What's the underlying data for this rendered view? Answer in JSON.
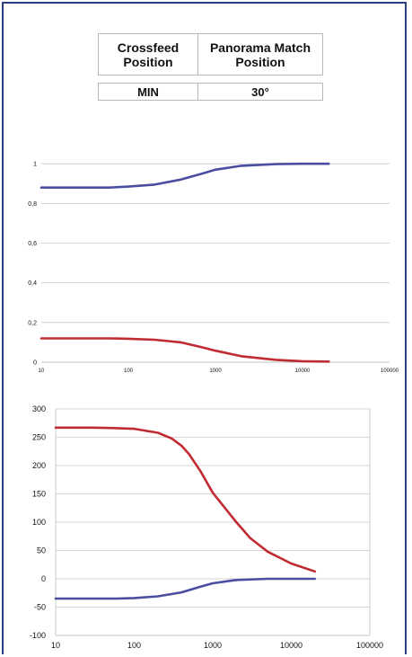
{
  "table": {
    "headers": [
      "Crossfeed\nPosition",
      "Panorama Match\nPosition"
    ],
    "header_lines": [
      [
        "Crossfeed",
        "Position"
      ],
      [
        "Panorama Match",
        "Position"
      ]
    ],
    "row": [
      "MIN",
      "30°"
    ]
  },
  "colors": {
    "frame": "#2e3f7f",
    "series_blue": "#4a4ea0",
    "series_red": "#c02c32",
    "grid": "#c8c8c8"
  },
  "chart_data": [
    {
      "type": "line",
      "x_scale": "log",
      "xlim": [
        10,
        100000
      ],
      "ylim": [
        0,
        1.2
      ],
      "x_ticks": [
        10,
        100,
        1000,
        10000,
        100000
      ],
      "x_tick_labels": [
        "10",
        "100",
        "1000",
        "10000",
        "100000"
      ],
      "y_ticks": [
        0,
        0.2,
        0.4,
        0.6,
        0.8,
        1
      ],
      "y_tick_labels": [
        "0",
        "0,2",
        "0,4",
        "0,6",
        "0,8",
        "1"
      ],
      "grid": "horizontal",
      "series": [
        {
          "color": "#4a4ea0",
          "x": [
            10,
            30,
            60,
            100,
            200,
            400,
            700,
            1000,
            2000,
            5000,
            10000,
            20000
          ],
          "values": [
            0.88,
            0.88,
            0.88,
            0.885,
            0.895,
            0.92,
            0.95,
            0.97,
            0.99,
            0.998,
            1.0,
            1.0
          ]
        },
        {
          "color": "#c02c32",
          "x": [
            10,
            30,
            60,
            100,
            200,
            400,
            700,
            1000,
            2000,
            5000,
            10000,
            20000
          ],
          "values": [
            0.12,
            0.12,
            0.12,
            0.118,
            0.113,
            0.1,
            0.075,
            0.058,
            0.03,
            0.012,
            0.005,
            0.003
          ]
        }
      ]
    },
    {
      "type": "line",
      "x_scale": "log",
      "xlim": [
        10,
        100000
      ],
      "ylim": [
        -100,
        300
      ],
      "x_ticks": [
        10,
        100,
        1000,
        10000,
        100000
      ],
      "x_tick_labels": [
        "10",
        "100",
        "1000",
        "10000",
        "100000"
      ],
      "y_ticks": [
        -100,
        -50,
        0,
        50,
        100,
        150,
        200,
        250,
        300
      ],
      "y_tick_labels": [
        "-100",
        "-50",
        "0",
        "50",
        "100",
        "150",
        "200",
        "250",
        "300"
      ],
      "grid": "horizontal",
      "series": [
        {
          "color": "#c02c32",
          "x": [
            10,
            30,
            60,
            100,
            200,
            300,
            400,
            500,
            700,
            1000,
            2000,
            3000,
            5000,
            10000,
            20000
          ],
          "values": [
            267,
            267,
            266,
            265,
            258,
            248,
            235,
            220,
            190,
            152,
            100,
            72,
            48,
            27,
            13
          ]
        },
        {
          "color": "#4a4ea0",
          "x": [
            10,
            30,
            60,
            100,
            200,
            400,
            700,
            1000,
            2000,
            5000,
            10000,
            20000
          ],
          "values": [
            -35,
            -35,
            -35,
            -34,
            -31,
            -24,
            -14,
            -8,
            -2,
            0,
            0,
            0
          ]
        }
      ]
    }
  ]
}
